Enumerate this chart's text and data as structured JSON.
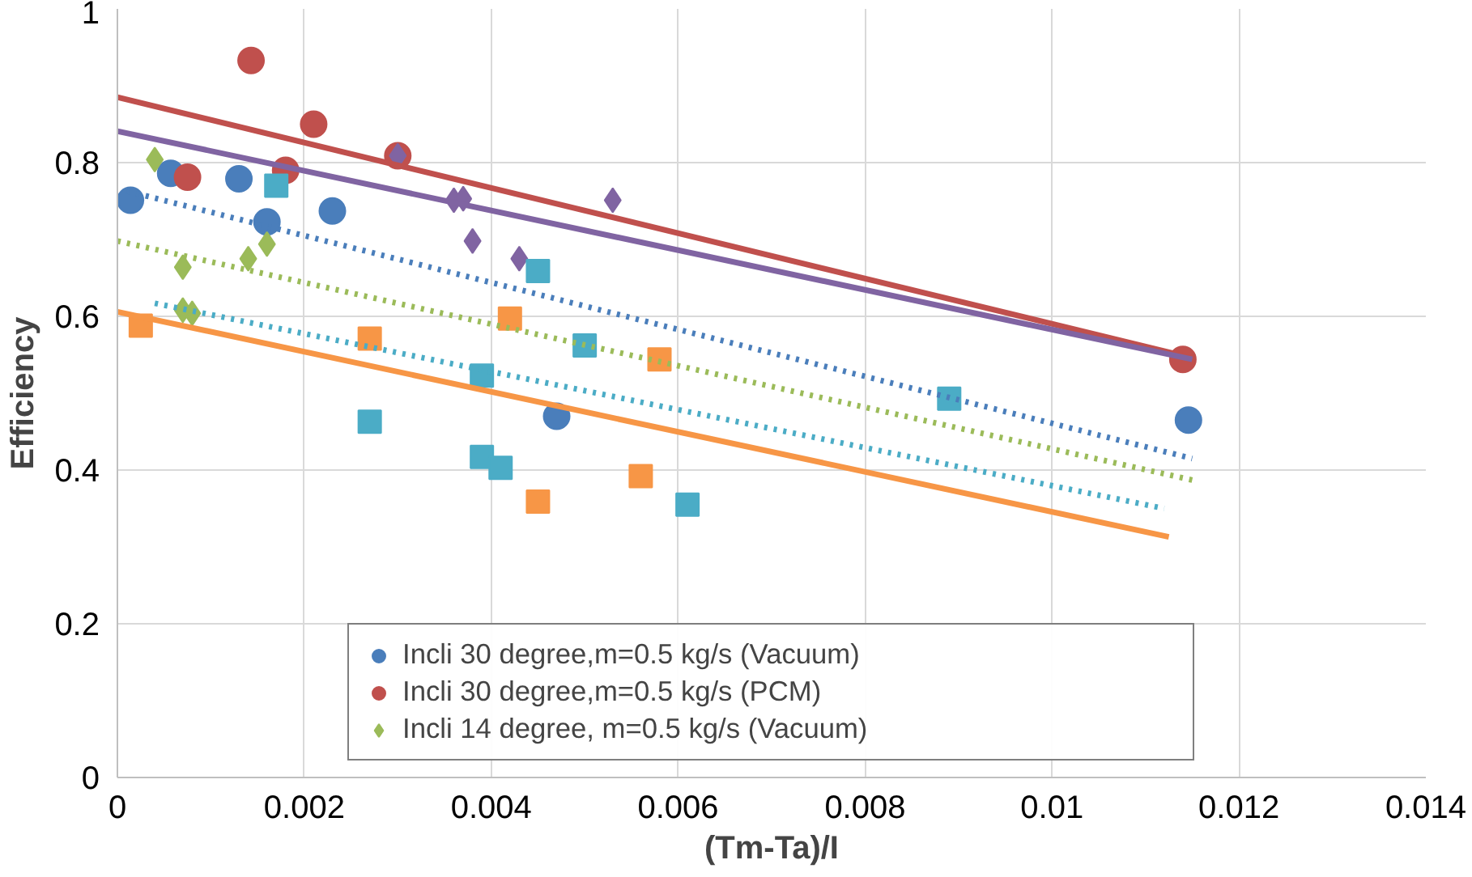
{
  "chart_data": {
    "type": "scatter",
    "xlabel": "(Tm-Ta)/I",
    "ylabel": "Efficiency",
    "xlim": [
      0,
      0.014
    ],
    "xticks": [
      0,
      0.002,
      0.004,
      0.006,
      0.008,
      0.01,
      0.012,
      0.014
    ],
    "ylim": [
      0,
      1
    ],
    "yticks": [
      0,
      0.2,
      0.4,
      0.6,
      0.8,
      1
    ],
    "grid": true,
    "legend": "bottom",
    "series": [
      {
        "name": "Incli 30 degree,m=0.5 kg/s (Vacuum)",
        "color": "#4a7ebb",
        "marker": "circle",
        "x": [
          0.00014,
          0.00057,
          0.0013,
          0.0016,
          0.0023,
          0.0047,
          0.01146
        ],
        "values": [
          0.751,
          0.786,
          0.779,
          0.723,
          0.737,
          0.47,
          0.465
        ]
      },
      {
        "name": "Incli 30 degree,m=0.5 kg/s (PCM)",
        "color": "#c0504d",
        "marker": "circle",
        "x": [
          0.00143,
          0.0021,
          0.00075,
          0.0018,
          0.003,
          0.0114
        ],
        "values": [
          0.933,
          0.85,
          0.781,
          0.79,
          0.809,
          0.544
        ]
      },
      {
        "name": "Incli 14 degree, m=0.5 kg/s (Vacuum)",
        "color": "#9bbb59",
        "marker": "diamond",
        "x": [
          0.0004,
          0.0007,
          0.0008,
          0.0007,
          0.0014,
          0.0016
        ],
        "values": [
          0.804,
          0.664,
          0.604,
          0.608,
          0.675,
          0.694
        ]
      },
      {
        "color": "#8064a2",
        "marker": "diamond",
        "x": [
          0.003,
          0.0036,
          0.0037,
          0.0038,
          0.0043,
          0.0053
        ],
        "values": [
          0.809,
          0.751,
          0.753,
          0.698,
          0.675,
          0.751
        ]
      },
      {
        "color": "#f79646",
        "marker": "square",
        "x": [
          0.00025,
          0.0027,
          0.0042,
          0.0045,
          0.0056,
          0.0058
        ],
        "values": [
          0.588,
          0.571,
          0.597,
          0.359,
          0.392,
          0.544
        ]
      },
      {
        "color": "#4bacc6",
        "marker": "square",
        "x": [
          0.0017,
          0.0027,
          0.0039,
          0.0039,
          0.0041,
          0.0045,
          0.005,
          0.0061,
          0.0089
        ],
        "values": [
          0.77,
          0.463,
          0.523,
          0.417,
          0.403,
          0.659,
          0.562,
          0.355,
          0.493
        ]
      },
      {
        "type": "line",
        "color": "#c0504d",
        "line_style": "solid",
        "x": [
          0,
          0.0115
        ],
        "values": [
          0.885,
          0.546
        ]
      },
      {
        "type": "line",
        "color": "#8064a2",
        "line_style": "solid",
        "x": [
          0,
          0.0115
        ],
        "values": [
          0.841,
          0.544
        ]
      },
      {
        "type": "line",
        "color": "#4a7ebb",
        "line_style": "dotted",
        "x": [
          0.0001,
          0.0115
        ],
        "values": [
          0.763,
          0.415
        ]
      },
      {
        "type": "line",
        "color": "#9bbb59",
        "line_style": "dotted",
        "x": [
          0,
          0.0115
        ],
        "values": [
          0.698,
          0.387
        ]
      },
      {
        "type": "line",
        "color": "#4bacc6",
        "line_style": "dotted",
        "x": [
          0.0004,
          0.0112
        ],
        "values": [
          0.617,
          0.35
        ]
      },
      {
        "type": "line",
        "color": "#f79646",
        "line_style": "solid",
        "x": [
          0,
          0.01125
        ],
        "values": [
          0.606,
          0.313
        ]
      }
    ]
  }
}
